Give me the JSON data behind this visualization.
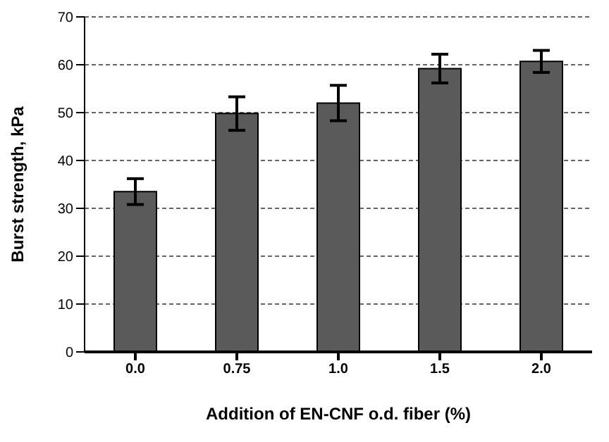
{
  "chart_data": {
    "type": "bar",
    "xlabel": "Addition of EN-CNF o.d. fiber (%)",
    "ylabel": "Burst strength, kPa",
    "categories": [
      "0.0",
      "0.75",
      "1.0",
      "1.5",
      "2.0"
    ],
    "values": [
      33.5,
      49.8,
      52.0,
      59.2,
      60.7
    ],
    "errors": [
      2.7,
      3.5,
      3.7,
      3.0,
      2.3
    ],
    "color": "#5a5a5a",
    "ylim": [
      0,
      70
    ],
    "yticks": [
      0,
      10,
      20,
      30,
      40,
      50,
      60,
      70
    ],
    "grid": "y"
  }
}
